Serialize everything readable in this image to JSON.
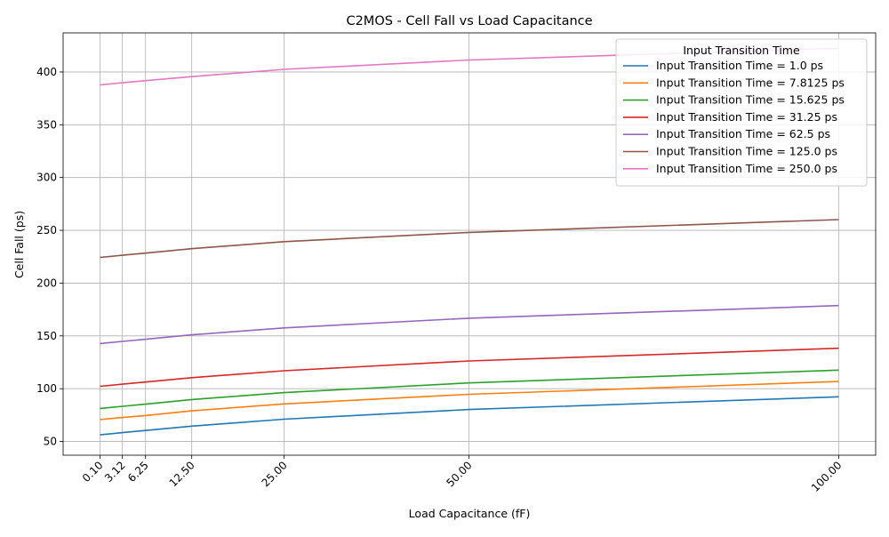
{
  "chart_data": {
    "type": "line",
    "title": "C2MOS - Cell Fall vs Load Capacitance",
    "xlabel": "Load Capacitance (fF)",
    "ylabel": "Cell Fall (ps)",
    "x": [
      0.1,
      3.12,
      6.25,
      12.5,
      25.0,
      50.0,
      100.0
    ],
    "x_tick_labels": [
      "0.10",
      "3.12",
      "6.25",
      "12.50",
      "25.00",
      "50.00",
      "100.00"
    ],
    "ylim": [
      37,
      437
    ],
    "y_ticks": [
      50,
      100,
      150,
      200,
      250,
      300,
      350,
      400
    ],
    "grid": true,
    "legend": {
      "title": "Input Transition Time",
      "placement": "top-right"
    },
    "series": [
      {
        "name": "Input Transition Time = 1.0 ps",
        "color": "#1f77b4",
        "values": [
          56.3,
          58.4,
          60.4,
          64.5,
          71.1,
          80.3,
          92.3
        ]
      },
      {
        "name": "Input Transition Time = 7.8125 ps",
        "color": "#ff7f0e",
        "values": [
          70.8,
          72.7,
          74.6,
          79.0,
          85.6,
          94.7,
          106.8
        ]
      },
      {
        "name": "Input Transition Time = 15.625 ps",
        "color": "#2ca02c",
        "values": [
          81.3,
          83.3,
          85.3,
          89.7,
          96.3,
          105.5,
          117.6
        ]
      },
      {
        "name": "Input Transition Time = 31.25 ps",
        "color": "#d62728",
        "values": [
          102.3,
          104.3,
          106.3,
          110.4,
          117.0,
          126.3,
          138.3
        ]
      },
      {
        "name": "Input Transition Time = 62.5 ps",
        "color": "#9467bd",
        "values": [
          142.8,
          144.8,
          146.8,
          151.0,
          157.6,
          166.8,
          178.7
        ]
      },
      {
        "name": "Input Transition Time = 125.0 ps",
        "color": "#8c564b",
        "values": [
          224.4,
          226.4,
          228.4,
          232.6,
          239.3,
          248.0,
          260.2
        ]
      },
      {
        "name": "Input Transition Time = 250.0 ps",
        "color": "#e377c2",
        "values": [
          387.7,
          389.8,
          391.8,
          395.6,
          402.5,
          411.3,
          422.5
        ]
      }
    ]
  }
}
